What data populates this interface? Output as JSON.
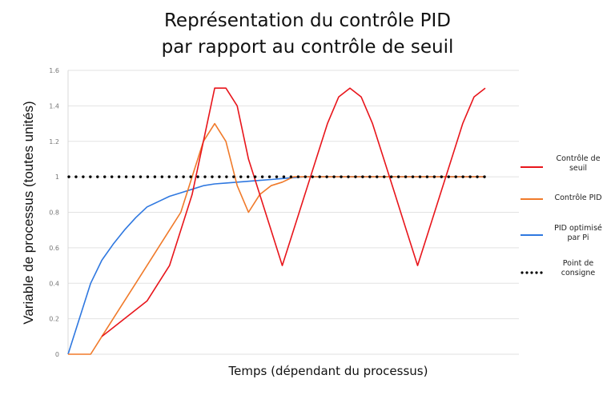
{
  "chart_data": {
    "type": "line",
    "title": "Représentation du contrôle PID par rapport au contrôle de seuil",
    "title_lines": [
      "Représentation du contrôle PID",
      "par rapport au contrôle de seuil"
    ],
    "xlabel": "Temps (dépendant du processus)",
    "ylabel": "Variable de processus (toutes unités)",
    "ylim": [
      0,
      1.6
    ],
    "yticks": [
      "0",
      "0.2",
      "0.4",
      "0.6",
      "0.8",
      "1",
      "1.2",
      "1.4",
      "1.6"
    ],
    "grid": true,
    "legend_position": "right",
    "x": [
      0,
      1,
      2,
      3,
      4,
      5,
      6,
      7,
      8,
      9,
      10,
      11,
      12,
      13,
      14,
      15,
      16,
      17,
      18,
      19,
      20,
      21,
      22,
      23,
      24,
      25,
      26,
      27,
      28,
      29,
      30,
      31,
      32,
      33,
      34,
      35,
      36,
      37
    ],
    "series": [
      {
        "name": "Contrôle de seuil",
        "color": "#e8151b",
        "style": "solid",
        "values": [
          null,
          null,
          null,
          0.1,
          0.15,
          0.2,
          0.25,
          0.3,
          0.4,
          0.5,
          0.7,
          0.9,
          1.2,
          1.5,
          1.5,
          1.4,
          1.1,
          0.9,
          0.7,
          0.5,
          0.7,
          0.9,
          1.1,
          1.3,
          1.45,
          1.5,
          1.45,
          1.3,
          1.1,
          0.9,
          0.7,
          0.5,
          0.7,
          0.9,
          1.1,
          1.3,
          1.45,
          1.5
        ]
      },
      {
        "name": "Contrôle PID",
        "color": "#f07a2a",
        "style": "solid",
        "values": [
          0,
          0,
          0,
          0.1,
          0.2,
          0.3,
          0.4,
          0.5,
          0.6,
          0.7,
          0.8,
          1.0,
          1.2,
          1.3,
          1.2,
          0.95,
          0.8,
          0.9,
          0.95,
          0.97,
          1.0,
          1.0,
          1.0,
          1.0,
          1.0,
          1.0,
          1.0,
          1.0,
          1.0,
          1.0,
          1.0,
          1.0,
          1.0,
          1.0,
          1.0,
          1.0,
          1.0,
          1.0
        ]
      },
      {
        "name": "PID optimisé par Pi",
        "color": "#2f78e0",
        "style": "solid",
        "values": [
          0,
          0.2,
          0.4,
          0.53,
          0.62,
          0.7,
          0.77,
          0.83,
          0.86,
          0.89,
          0.91,
          0.93,
          0.95,
          0.96,
          0.965,
          0.97,
          0.975,
          0.98,
          0.985,
          0.99,
          0.995,
          1.0,
          1.0,
          1.0,
          1.0,
          1.0,
          1.0,
          1.0,
          1.0,
          1.0,
          1.0,
          1.0,
          1.0,
          1.0,
          1.0,
          1.0,
          1.0,
          1.0
        ]
      },
      {
        "name": "Point de consigne",
        "color": "#000000",
        "style": "dotted",
        "values": [
          1,
          1,
          1,
          1,
          1,
          1,
          1,
          1,
          1,
          1,
          1,
          1,
          1,
          1,
          1,
          1,
          1,
          1,
          1,
          1,
          1,
          1,
          1,
          1,
          1,
          1,
          1,
          1,
          1,
          1,
          1,
          1,
          1,
          1,
          1,
          1,
          1,
          1
        ]
      }
    ]
  },
  "legend": [
    {
      "label": "Contrôle de seuil",
      "lines": [
        "Contrôle de",
        "seuil"
      ],
      "color": "#e8151b"
    },
    {
      "label": "Contrôle PID",
      "lines": [
        "Contrôle PID"
      ],
      "color": "#f07a2a"
    },
    {
      "label": "PID optimisé par Pi",
      "lines": [
        "PID optimisé",
        "par Pi"
      ],
      "color": "#2f78e0"
    },
    {
      "label": "Point de consigne",
      "lines": [
        "Point de",
        "consigne"
      ],
      "color": "#000000"
    }
  ]
}
